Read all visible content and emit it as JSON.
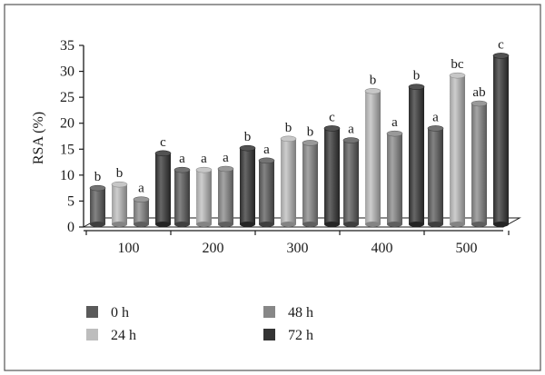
{
  "chart_data": {
    "type": "bar",
    "title": "",
    "xlabel": "",
    "ylabel": "RSA (%)",
    "ylim": [
      0,
      35
    ],
    "yticks": [
      0,
      5,
      10,
      15,
      20,
      25,
      30,
      35
    ],
    "grid": false,
    "legend_position": "bottom",
    "style": "3d-cylinder",
    "categories": [
      "100",
      "200",
      "300",
      "400",
      "500"
    ],
    "series": [
      {
        "name": "0 h",
        "color": "#5a5a5a",
        "values": [
          7.5,
          11,
          12.8,
          16.7,
          19
        ],
        "letters": [
          "b",
          "a",
          "a",
          "a",
          "a"
        ]
      },
      {
        "name": "24 h",
        "color": "#bdbdbd",
        "values": [
          8.2,
          11,
          17,
          26.2,
          29.2
        ],
        "letters": [
          "b",
          "a",
          "b",
          "b",
          "bc"
        ]
      },
      {
        "name": "48 h",
        "color": "#878787",
        "values": [
          5.3,
          11.2,
          16.2,
          18,
          23.8
        ],
        "letters": [
          "a",
          "a",
          "b",
          "a",
          "ab"
        ]
      },
      {
        "name": "72 h",
        "color": "#343434",
        "values": [
          14.2,
          15.2,
          19,
          27,
          33
        ],
        "letters": [
          "c",
          "b",
          "c",
          "b",
          "c"
        ]
      }
    ]
  }
}
